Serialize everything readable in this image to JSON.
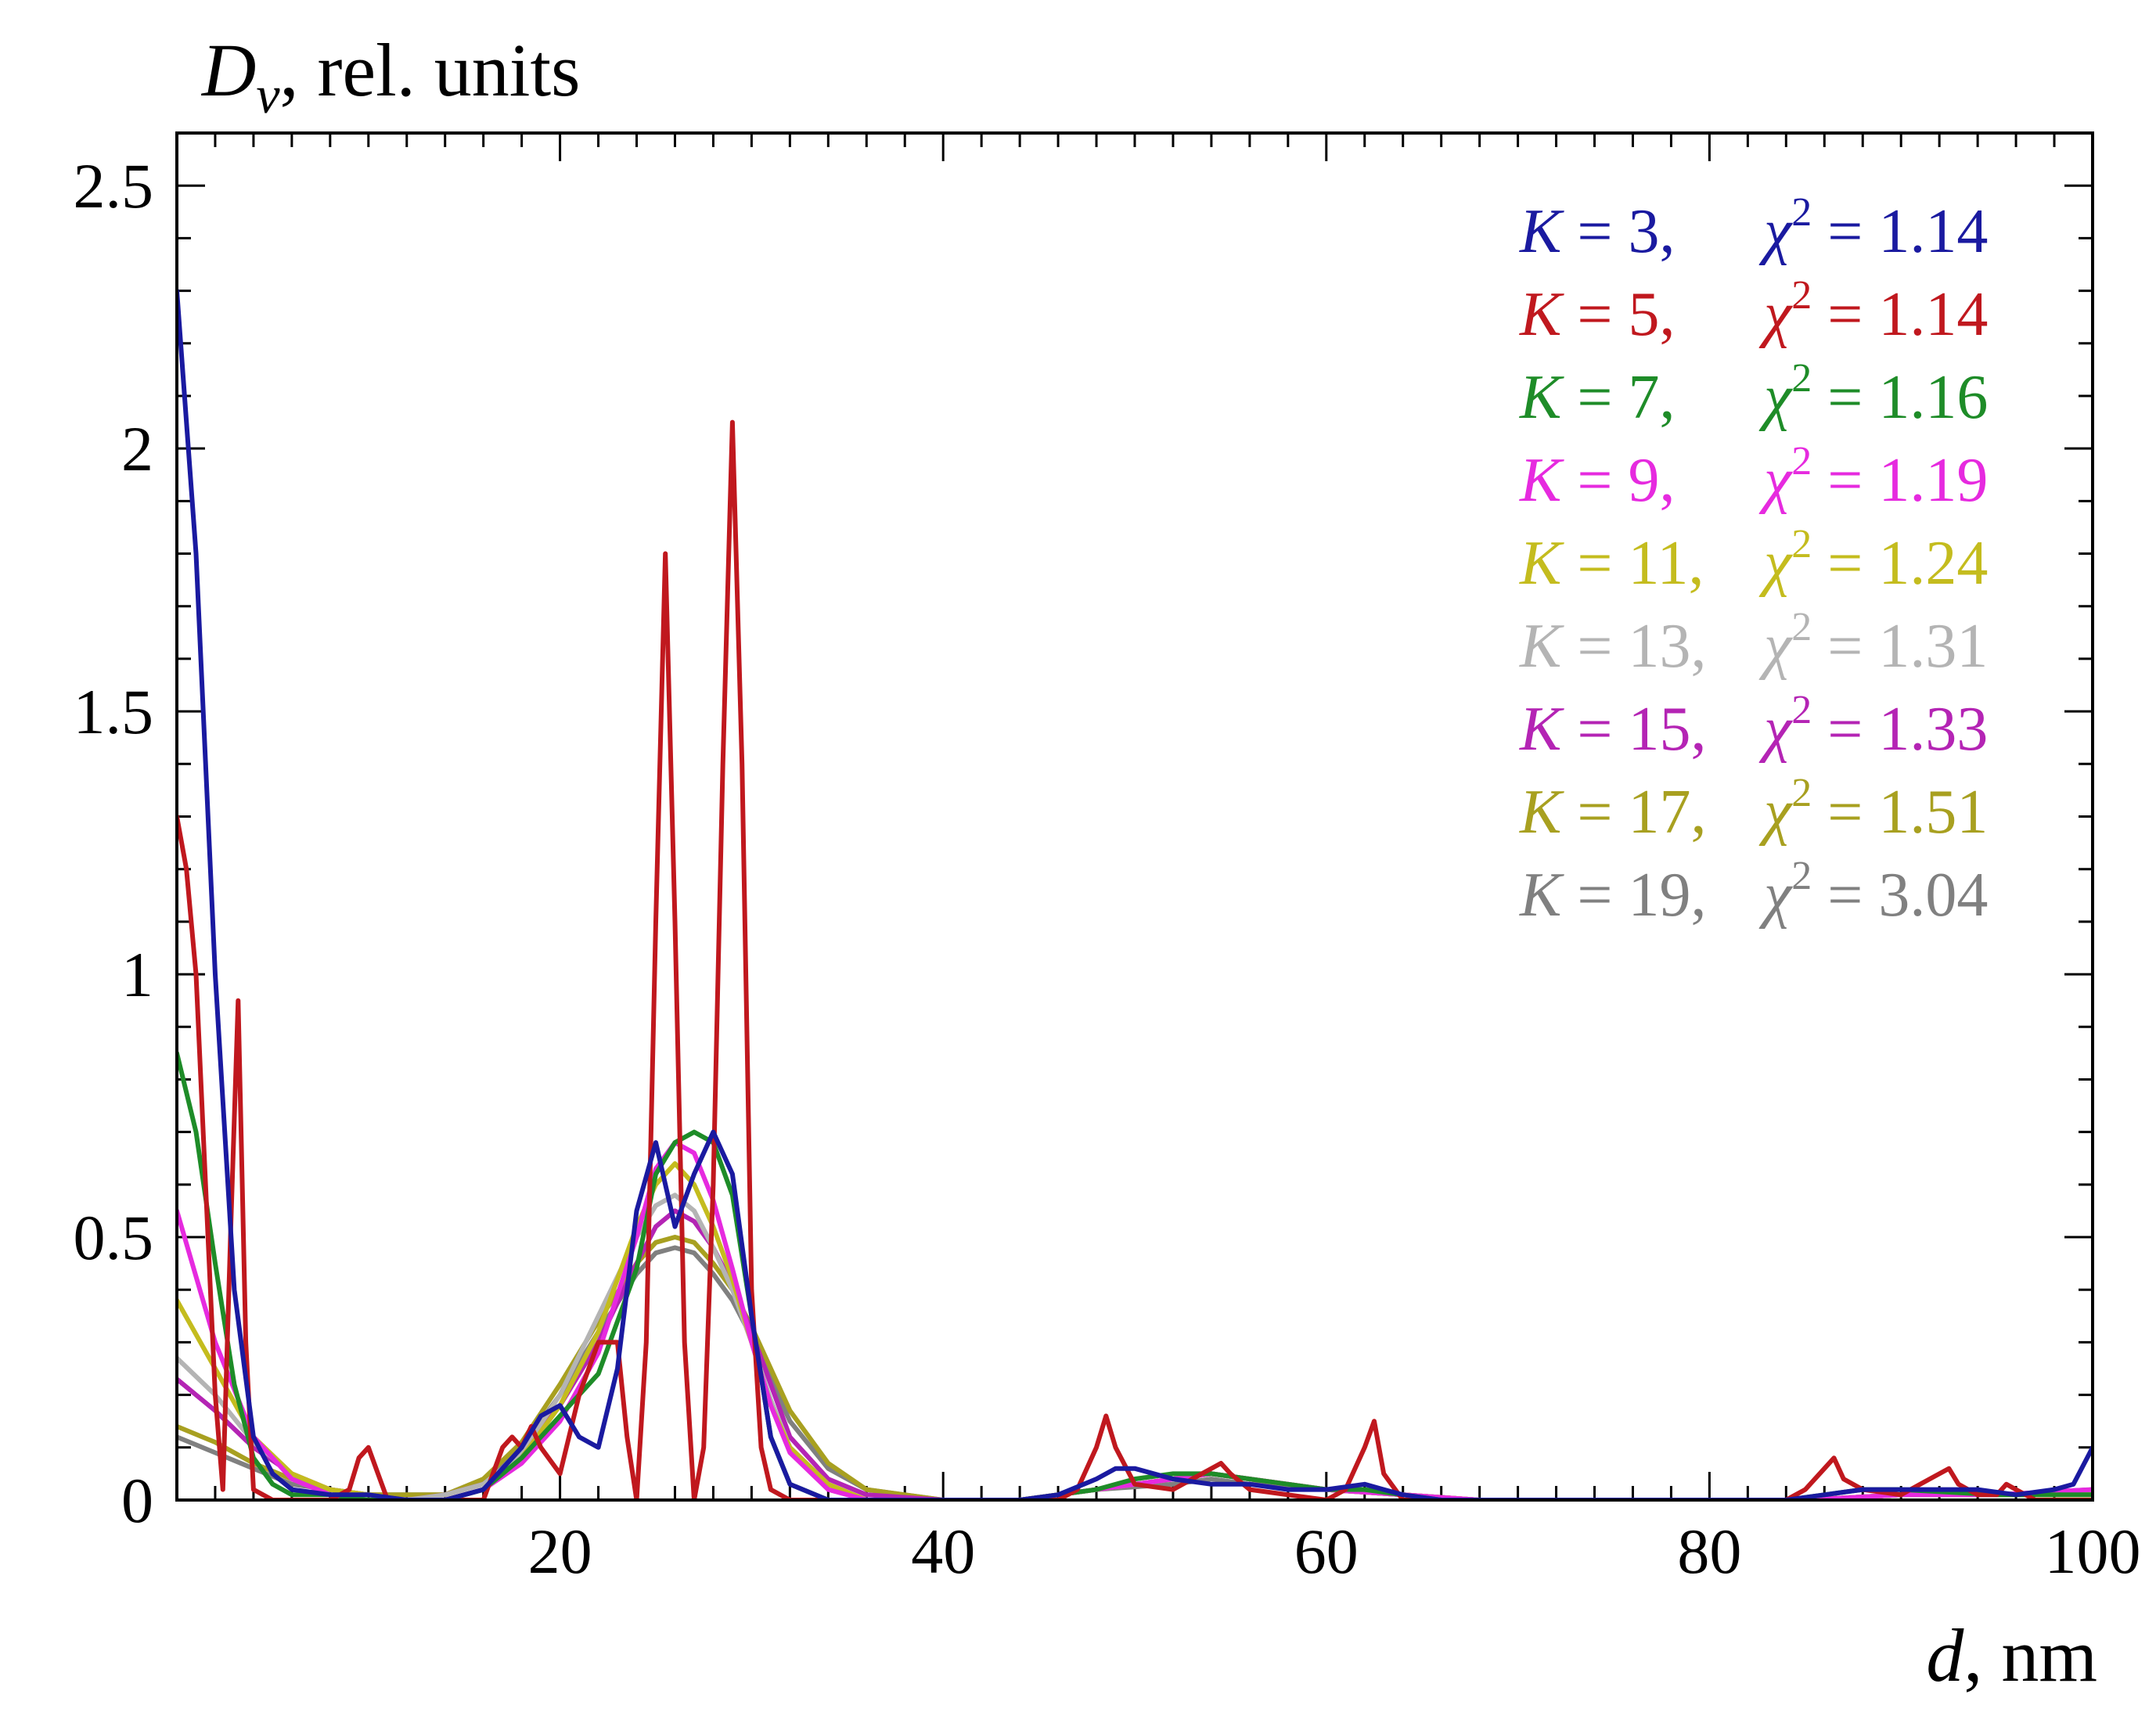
{
  "chart_data": {
    "type": "line",
    "title": "",
    "ylabel": {
      "symbol": "D",
      "subscript": "v",
      "rest": ", rel. units"
    },
    "xlabel": {
      "symbol": "d",
      "rest": ", nm"
    },
    "xlim": [
      0,
      100
    ],
    "ylim": [
      0,
      2.6
    ],
    "x_ticks": [
      20,
      40,
      60,
      80,
      100
    ],
    "x_tick_labels": [
      "20",
      "40",
      "60",
      "80",
      "100"
    ],
    "y_ticks": [
      0,
      0.5,
      1,
      1.5,
      2,
      2.5
    ],
    "y_tick_labels": [
      "0",
      "0.5",
      "1",
      "1.5",
      "2",
      "2.5"
    ],
    "grid": false,
    "legend_position": "top-right",
    "series": [
      {
        "name": "K = 3",
        "k": "3",
        "chi2": "1.14",
        "color": "#1a1aa0",
        "x": [
          0,
          1,
          2,
          3,
          4,
          5,
          6,
          8,
          10,
          12,
          14,
          16,
          18,
          19,
          20,
          21,
          22,
          23,
          24,
          25,
          26,
          27,
          28,
          29,
          30,
          31,
          32,
          34,
          36,
          40,
          44,
          46,
          48,
          49,
          50,
          52,
          54,
          56,
          58,
          60,
          62,
          63,
          64,
          66,
          70,
          80,
          84,
          86,
          88,
          90,
          92,
          94,
          96,
          98,
          99,
          100
        ],
        "values": [
          2.3,
          1.8,
          1.0,
          0.4,
          0.12,
          0.05,
          0.02,
          0.01,
          0.01,
          0.0,
          0.0,
          0.02,
          0.1,
          0.16,
          0.18,
          0.12,
          0.1,
          0.25,
          0.55,
          0.68,
          0.52,
          0.62,
          0.7,
          0.62,
          0.35,
          0.12,
          0.03,
          0.0,
          0.0,
          0.0,
          0.0,
          0.01,
          0.04,
          0.06,
          0.06,
          0.04,
          0.03,
          0.03,
          0.02,
          0.02,
          0.03,
          0.02,
          0.01,
          0.0,
          0.0,
          0.0,
          0.0,
          0.01,
          0.02,
          0.02,
          0.02,
          0.02,
          0.01,
          0.02,
          0.03,
          0.1
        ]
      },
      {
        "name": "K = 5",
        "k": "5",
        "chi2": "1.14",
        "color": "#c0181e",
        "x": [
          0,
          0.5,
          1,
          1.5,
          2,
          2.4,
          2.8,
          3.2,
          3.6,
          4,
          5,
          6,
          7,
          8,
          9,
          9.5,
          10,
          10.5,
          11,
          12,
          14,
          16,
          16.5,
          17,
          17.5,
          18,
          18.5,
          19,
          20,
          21,
          22,
          23,
          23.5,
          24,
          24.5,
          25,
          25.5,
          26,
          26.5,
          27,
          27.5,
          28,
          28.5,
          29,
          29.5,
          30,
          30.5,
          31,
          32,
          34,
          40,
          46,
          47,
          48,
          48.5,
          49,
          50,
          52,
          53,
          54,
          54.5,
          55,
          56,
          58,
          60,
          61,
          62,
          62.5,
          63,
          64,
          66,
          70,
          80,
          84,
          85,
          86,
          86.5,
          87,
          88,
          90,
          91,
          92,
          92.5,
          93,
          94,
          95,
          95.5,
          96,
          97,
          98,
          99,
          100
        ],
        "values": [
          1.3,
          1.2,
          1.0,
          0.6,
          0.2,
          0.02,
          0.5,
          0.95,
          0.3,
          0.02,
          0.0,
          0.0,
          0.0,
          0.0,
          0.02,
          0.08,
          0.1,
          0.05,
          0.0,
          0.0,
          0.0,
          0.0,
          0.05,
          0.1,
          0.12,
          0.1,
          0.14,
          0.1,
          0.05,
          0.2,
          0.3,
          0.3,
          0.12,
          0.0,
          0.3,
          1.1,
          1.8,
          1.1,
          0.3,
          0.0,
          0.1,
          0.6,
          1.4,
          2.05,
          1.4,
          0.4,
          0.1,
          0.02,
          0.0,
          0.0,
          0.0,
          0.0,
          0.02,
          0.1,
          0.16,
          0.1,
          0.03,
          0.02,
          0.04,
          0.06,
          0.07,
          0.05,
          0.02,
          0.01,
          0.0,
          0.02,
          0.1,
          0.15,
          0.05,
          0.0,
          0.0,
          0.0,
          0.0,
          0.0,
          0.02,
          0.06,
          0.08,
          0.04,
          0.02,
          0.01,
          0.03,
          0.05,
          0.06,
          0.03,
          0.01,
          0.01,
          0.03,
          0.02,
          0.0,
          0.0,
          0.0,
          0.0
        ]
      },
      {
        "name": "K = 7",
        "k": "7",
        "chi2": "1.16",
        "color": "#1e8c28",
        "x": [
          0,
          1,
          2,
          3,
          4,
          5,
          6,
          8,
          10,
          12,
          14,
          16,
          18,
          20,
          22,
          24,
          25,
          26,
          27,
          28,
          29,
          30,
          31,
          32,
          34,
          36,
          40,
          44,
          48,
          50,
          52,
          54,
          56,
          58,
          60,
          62,
          64,
          66,
          70,
          80,
          84,
          86,
          88,
          90,
          95,
          100
        ],
        "values": [
          0.85,
          0.7,
          0.45,
          0.22,
          0.08,
          0.03,
          0.01,
          0.01,
          0.0,
          0.0,
          0.0,
          0.02,
          0.08,
          0.16,
          0.24,
          0.44,
          0.62,
          0.68,
          0.7,
          0.68,
          0.58,
          0.35,
          0.12,
          0.03,
          0.0,
          0.0,
          0.0,
          0.0,
          0.02,
          0.04,
          0.05,
          0.05,
          0.04,
          0.03,
          0.02,
          0.02,
          0.01,
          0.0,
          0.0,
          0.0,
          0.0,
          0.01,
          0.02,
          0.02,
          0.01,
          0.01
        ]
      },
      {
        "name": "K = 9",
        "k": "9",
        "chi2": "1.19",
        "color": "#e62adf",
        "x": [
          0,
          2,
          4,
          6,
          8,
          10,
          12,
          14,
          16,
          18,
          20,
          22,
          24,
          25,
          26,
          27,
          28,
          29,
          30,
          31,
          32,
          34,
          36,
          40,
          44,
          48,
          52,
          54,
          56,
          60,
          64,
          68,
          70,
          80,
          85,
          90,
          95,
          100
        ],
        "values": [
          0.55,
          0.3,
          0.12,
          0.04,
          0.01,
          0.0,
          0.0,
          0.0,
          0.02,
          0.07,
          0.15,
          0.28,
          0.5,
          0.63,
          0.68,
          0.66,
          0.57,
          0.44,
          0.3,
          0.18,
          0.09,
          0.02,
          0.0,
          0.0,
          0.0,
          0.02,
          0.04,
          0.05,
          0.04,
          0.02,
          0.01,
          0.0,
          0.0,
          0.0,
          0.0,
          0.01,
          0.01,
          0.02
        ]
      },
      {
        "name": "K = 11",
        "k": "11",
        "chi2": "1.24",
        "color": "#c4bc1e",
        "x": [
          0,
          2,
          4,
          6,
          8,
          10,
          12,
          14,
          16,
          18,
          20,
          22,
          24,
          25,
          26,
          27,
          28,
          29,
          30,
          31,
          32,
          34,
          36,
          40,
          44,
          48,
          52,
          54,
          56,
          60,
          64,
          68,
          70,
          80,
          85,
          90,
          95,
          100
        ],
        "values": [
          0.38,
          0.25,
          0.12,
          0.05,
          0.02,
          0.01,
          0.0,
          0.0,
          0.02,
          0.08,
          0.18,
          0.32,
          0.52,
          0.6,
          0.64,
          0.6,
          0.52,
          0.42,
          0.3,
          0.18,
          0.1,
          0.03,
          0.0,
          0.0,
          0.0,
          0.02,
          0.04,
          0.05,
          0.04,
          0.02,
          0.01,
          0.0,
          0.0,
          0.0,
          0.0,
          0.01,
          0.01,
          0.01
        ]
      },
      {
        "name": "K = 13",
        "k": "13",
        "chi2": "1.31",
        "color": "#b4b4b4",
        "x": [
          0,
          2,
          4,
          6,
          8,
          10,
          12,
          14,
          16,
          18,
          20,
          22,
          24,
          25,
          26,
          27,
          28,
          29,
          30,
          31,
          32,
          34,
          36,
          40,
          44,
          48,
          52,
          54,
          56,
          60,
          64,
          68,
          70,
          80,
          85,
          90,
          95,
          100
        ],
        "values": [
          0.27,
          0.2,
          0.11,
          0.05,
          0.02,
          0.01,
          0.0,
          0.01,
          0.03,
          0.09,
          0.2,
          0.35,
          0.5,
          0.56,
          0.58,
          0.55,
          0.48,
          0.4,
          0.3,
          0.19,
          0.1,
          0.03,
          0.0,
          0.0,
          0.0,
          0.02,
          0.04,
          0.05,
          0.04,
          0.02,
          0.01,
          0.0,
          0.0,
          0.0,
          0.0,
          0.01,
          0.01,
          0.01
        ]
      },
      {
        "name": "K = 15",
        "k": "15",
        "chi2": "1.33",
        "color": "#b424b4",
        "x": [
          0,
          2,
          4,
          6,
          8,
          10,
          12,
          14,
          16,
          18,
          20,
          22,
          24,
          25,
          26,
          27,
          28,
          29,
          30,
          31,
          32,
          34,
          36,
          40,
          44,
          48,
          52,
          54,
          56,
          60,
          64,
          68,
          70,
          80,
          85,
          90,
          95,
          100
        ],
        "values": [
          0.23,
          0.17,
          0.1,
          0.05,
          0.02,
          0.01,
          0.0,
          0.01,
          0.03,
          0.09,
          0.18,
          0.3,
          0.45,
          0.52,
          0.55,
          0.53,
          0.48,
          0.41,
          0.32,
          0.22,
          0.12,
          0.04,
          0.01,
          0.0,
          0.0,
          0.02,
          0.04,
          0.05,
          0.04,
          0.02,
          0.01,
          0.0,
          0.0,
          0.0,
          0.0,
          0.01,
          0.01,
          0.02
        ]
      },
      {
        "name": "K = 17",
        "k": "17",
        "chi2": "1.51",
        "color": "#a8a020",
        "x": [
          0,
          2,
          4,
          6,
          8,
          10,
          12,
          14,
          16,
          18,
          20,
          22,
          24,
          25,
          26,
          27,
          28,
          29,
          30,
          31,
          32,
          34,
          36,
          40,
          44,
          48,
          52,
          54,
          56,
          60,
          64,
          68,
          70,
          80,
          85,
          90,
          95,
          100
        ],
        "values": [
          0.14,
          0.11,
          0.07,
          0.04,
          0.02,
          0.01,
          0.01,
          0.01,
          0.04,
          0.11,
          0.22,
          0.34,
          0.45,
          0.49,
          0.5,
          0.49,
          0.45,
          0.4,
          0.33,
          0.25,
          0.17,
          0.07,
          0.02,
          0.0,
          0.0,
          0.02,
          0.04,
          0.05,
          0.04,
          0.02,
          0.01,
          0.0,
          0.0,
          0.0,
          0.0,
          0.01,
          0.01,
          0.01
        ]
      },
      {
        "name": "K = 19",
        "k": "19",
        "chi2": "3.04",
        "color": "#808080",
        "x": [
          0,
          2,
          4,
          6,
          8,
          10,
          12,
          14,
          16,
          18,
          20,
          22,
          24,
          25,
          26,
          27,
          28,
          29,
          30,
          31,
          32,
          34,
          36,
          40,
          44,
          48,
          52,
          54,
          56,
          60,
          64,
          68,
          70,
          80,
          85,
          90,
          95,
          100
        ],
        "values": [
          0.12,
          0.09,
          0.06,
          0.03,
          0.02,
          0.01,
          0.01,
          0.01,
          0.04,
          0.1,
          0.2,
          0.32,
          0.43,
          0.47,
          0.48,
          0.47,
          0.43,
          0.38,
          0.31,
          0.23,
          0.15,
          0.06,
          0.02,
          0.0,
          0.0,
          0.02,
          0.03,
          0.04,
          0.03,
          0.02,
          0.01,
          0.0,
          0.0,
          0.0,
          0.0,
          0.01,
          0.01,
          0.01
        ]
      }
    ]
  }
}
